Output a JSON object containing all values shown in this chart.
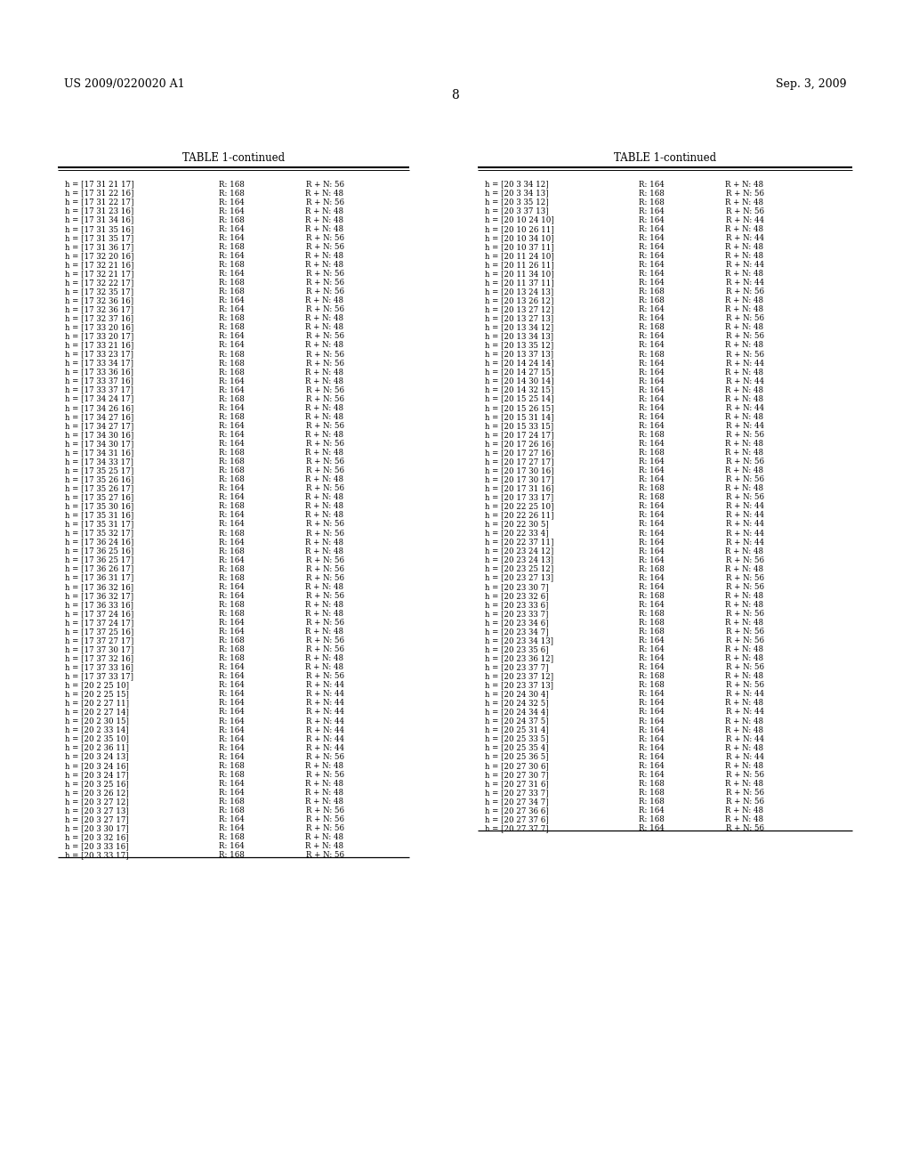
{
  "header_left": "US 2009/0220020 A1",
  "header_right": "Sep. 3, 2009",
  "page_number": "8",
  "table_title": "TABLE 1-continued",
  "bg_color": "#ffffff",
  "left_table_rows": [
    [
      "h = [17 31 21 17]",
      "R: 168",
      "R + N: 56"
    ],
    [
      "h = [17 31 22 16]",
      "R: 168",
      "R + N: 48"
    ],
    [
      "h = [17 31 22 17]",
      "R: 164",
      "R + N: 56"
    ],
    [
      "h = [17 31 23 16]",
      "R: 164",
      "R + N: 48"
    ],
    [
      "h = [17 31 34 16]",
      "R: 168",
      "R + N: 48"
    ],
    [
      "h = [17 31 35 16]",
      "R: 164",
      "R + N: 48"
    ],
    [
      "h = [17 31 35 17]",
      "R: 164",
      "R + N: 56"
    ],
    [
      "h = [17 31 36 17]",
      "R: 168",
      "R + N: 56"
    ],
    [
      "h = [17 32 20 16]",
      "R: 164",
      "R + N: 48"
    ],
    [
      "h = [17 32 21 16]",
      "R: 168",
      "R + N: 48"
    ],
    [
      "h = [17 32 21 17]",
      "R: 164",
      "R + N: 56"
    ],
    [
      "h = [17 32 22 17]",
      "R: 168",
      "R + N: 56"
    ],
    [
      "h = [17 32 35 17]",
      "R: 168",
      "R + N: 56"
    ],
    [
      "h = [17 32 36 16]",
      "R: 164",
      "R + N: 48"
    ],
    [
      "h = [17 32 36 17]",
      "R: 164",
      "R + N: 56"
    ],
    [
      "h = [17 32 37 16]",
      "R: 168",
      "R + N: 48"
    ],
    [
      "h = [17 33 20 16]",
      "R: 168",
      "R + N: 48"
    ],
    [
      "h = [17 33 20 17]",
      "R: 164",
      "R + N: 56"
    ],
    [
      "h = [17 33 21 16]",
      "R: 164",
      "R + N: 48"
    ],
    [
      "h = [17 33 23 17]",
      "R: 168",
      "R + N: 56"
    ],
    [
      "h = [17 33 34 17]",
      "R: 168",
      "R + N: 56"
    ],
    [
      "h = [17 33 36 16]",
      "R: 168",
      "R + N: 48"
    ],
    [
      "h = [17 33 37 16]",
      "R: 164",
      "R + N: 48"
    ],
    [
      "h = [17 33 37 17]",
      "R: 164",
      "R + N: 56"
    ],
    [
      "h = [17 34 24 17]",
      "R: 168",
      "R + N: 56"
    ],
    [
      "h = [17 34 26 16]",
      "R: 164",
      "R + N: 48"
    ],
    [
      "h = [17 34 27 16]",
      "R: 168",
      "R + N: 48"
    ],
    [
      "h = [17 34 27 17]",
      "R: 164",
      "R + N: 56"
    ],
    [
      "h = [17 34 30 16]",
      "R: 164",
      "R + N: 48"
    ],
    [
      "h = [17 34 30 17]",
      "R: 164",
      "R + N: 56"
    ],
    [
      "h = [17 34 31 16]",
      "R: 168",
      "R + N: 48"
    ],
    [
      "h = [17 34 33 17]",
      "R: 168",
      "R + N: 56"
    ],
    [
      "h = [17 35 25 17]",
      "R: 168",
      "R + N: 56"
    ],
    [
      "h = [17 35 26 16]",
      "R: 168",
      "R + N: 48"
    ],
    [
      "h = [17 35 26 17]",
      "R: 164",
      "R + N: 56"
    ],
    [
      "h = [17 35 27 16]",
      "R: 164",
      "R + N: 48"
    ],
    [
      "h = [17 35 30 16]",
      "R: 168",
      "R + N: 48"
    ],
    [
      "h = [17 35 31 16]",
      "R: 164",
      "R + N: 48"
    ],
    [
      "h = [17 35 31 17]",
      "R: 164",
      "R + N: 56"
    ],
    [
      "h = [17 35 32 17]",
      "R: 168",
      "R + N: 56"
    ],
    [
      "h = [17 36 24 16]",
      "R: 164",
      "R + N: 48"
    ],
    [
      "h = [17 36 25 16]",
      "R: 168",
      "R + N: 48"
    ],
    [
      "h = [17 36 25 17]",
      "R: 164",
      "R + N: 56"
    ],
    [
      "h = [17 36 26 17]",
      "R: 168",
      "R + N: 56"
    ],
    [
      "h = [17 36 31 17]",
      "R: 168",
      "R + N: 56"
    ],
    [
      "h = [17 36 32 16]",
      "R: 164",
      "R + N: 48"
    ],
    [
      "h = [17 36 32 17]",
      "R: 164",
      "R + N: 56"
    ],
    [
      "h = [17 36 33 16]",
      "R: 168",
      "R + N: 48"
    ],
    [
      "h = [17 37 24 16]",
      "R: 168",
      "R + N: 48"
    ],
    [
      "h = [17 37 24 17]",
      "R: 164",
      "R + N: 56"
    ],
    [
      "h = [17 37 25 16]",
      "R: 164",
      "R + N: 48"
    ],
    [
      "h = [17 37 27 17]",
      "R: 168",
      "R + N: 56"
    ],
    [
      "h = [17 37 30 17]",
      "R: 168",
      "R + N: 56"
    ],
    [
      "h = [17 37 32 16]",
      "R: 168",
      "R + N: 48"
    ],
    [
      "h = [17 37 33 16]",
      "R: 164",
      "R + N: 48"
    ],
    [
      "h = [17 37 33 17]",
      "R: 164",
      "R + N: 56"
    ],
    [
      "h = [20 2 25 10]",
      "R: 164",
      "R + N: 44"
    ],
    [
      "h = [20 2 25 15]",
      "R: 164",
      "R + N: 44"
    ],
    [
      "h = [20 2 27 11]",
      "R: 164",
      "R + N: 44"
    ],
    [
      "h = [20 2 27 14]",
      "R: 164",
      "R + N: 44"
    ],
    [
      "h = [20 2 30 15]",
      "R: 164",
      "R + N: 44"
    ],
    [
      "h = [20 2 33 14]",
      "R: 164",
      "R + N: 44"
    ],
    [
      "h = [20 2 35 10]",
      "R: 164",
      "R + N: 44"
    ],
    [
      "h = [20 2 36 11]",
      "R: 164",
      "R + N: 44"
    ],
    [
      "h = [20 3 24 13]",
      "R: 164",
      "R + N: 56"
    ],
    [
      "h = [20 3 24 16]",
      "R: 168",
      "R + N: 48"
    ],
    [
      "h = [20 3 24 17]",
      "R: 168",
      "R + N: 56"
    ],
    [
      "h = [20 3 25 16]",
      "R: 164",
      "R + N: 48"
    ],
    [
      "h = [20 3 26 12]",
      "R: 164",
      "R + N: 48"
    ],
    [
      "h = [20 3 27 12]",
      "R: 168",
      "R + N: 48"
    ],
    [
      "h = [20 3 27 13]",
      "R: 168",
      "R + N: 56"
    ],
    [
      "h = [20 3 27 17]",
      "R: 164",
      "R + N: 56"
    ],
    [
      "h = [20 3 30 17]",
      "R: 164",
      "R + N: 56"
    ],
    [
      "h = [20 3 32 16]",
      "R: 168",
      "R + N: 48"
    ],
    [
      "h = [20 3 33 16]",
      "R: 164",
      "R + N: 48"
    ],
    [
      "h = [20 3 33 17]",
      "R: 168",
      "R + N: 56"
    ]
  ],
  "right_table_rows": [
    [
      "h = [20 3 34 12]",
      "R: 164",
      "R + N: 48"
    ],
    [
      "h = [20 3 34 13]",
      "R: 168",
      "R + N: 56"
    ],
    [
      "h = [20 3 35 12]",
      "R: 168",
      "R + N: 48"
    ],
    [
      "h = [20 3 37 13]",
      "R: 164",
      "R + N: 56"
    ],
    [
      "h = [20 10 24 10]",
      "R: 164",
      "R + N: 44"
    ],
    [
      "h = [20 10 26 11]",
      "R: 164",
      "R + N: 48"
    ],
    [
      "h = [20 10 34 10]",
      "R: 164",
      "R + N: 44"
    ],
    [
      "h = [20 10 37 11]",
      "R: 164",
      "R + N: 48"
    ],
    [
      "h = [20 11 24 10]",
      "R: 164",
      "R + N: 48"
    ],
    [
      "h = [20 11 26 11]",
      "R: 164",
      "R + N: 44"
    ],
    [
      "h = [20 11 34 10]",
      "R: 164",
      "R + N: 48"
    ],
    [
      "h = [20 11 37 11]",
      "R: 164",
      "R + N: 44"
    ],
    [
      "h = [20 13 24 13]",
      "R: 168",
      "R + N: 56"
    ],
    [
      "h = [20 13 26 12]",
      "R: 168",
      "R + N: 48"
    ],
    [
      "h = [20 13 27 12]",
      "R: 164",
      "R + N: 48"
    ],
    [
      "h = [20 13 27 13]",
      "R: 164",
      "R + N: 56"
    ],
    [
      "h = [20 13 34 12]",
      "R: 168",
      "R + N: 48"
    ],
    [
      "h = [20 13 34 13]",
      "R: 164",
      "R + N: 56"
    ],
    [
      "h = [20 13 35 12]",
      "R: 164",
      "R + N: 48"
    ],
    [
      "h = [20 13 37 13]",
      "R: 168",
      "R + N: 56"
    ],
    [
      "h = [20 14 24 14]",
      "R: 164",
      "R + N: 44"
    ],
    [
      "h = [20 14 27 15]",
      "R: 164",
      "R + N: 48"
    ],
    [
      "h = [20 14 30 14]",
      "R: 164",
      "R + N: 44"
    ],
    [
      "h = [20 14 32 15]",
      "R: 164",
      "R + N: 48"
    ],
    [
      "h = [20 15 25 14]",
      "R: 164",
      "R + N: 48"
    ],
    [
      "h = [20 15 26 15]",
      "R: 164",
      "R + N: 44"
    ],
    [
      "h = [20 15 31 14]",
      "R: 164",
      "R + N: 48"
    ],
    [
      "h = [20 15 33 15]",
      "R: 164",
      "R + N: 44"
    ],
    [
      "h = [20 17 24 17]",
      "R: 168",
      "R + N: 56"
    ],
    [
      "h = [20 17 26 16]",
      "R: 164",
      "R + N: 48"
    ],
    [
      "h = [20 17 27 16]",
      "R: 168",
      "R + N: 48"
    ],
    [
      "h = [20 17 27 17]",
      "R: 164",
      "R + N: 56"
    ],
    [
      "h = [20 17 30 16]",
      "R: 164",
      "R + N: 48"
    ],
    [
      "h = [20 17 30 17]",
      "R: 164",
      "R + N: 56"
    ],
    [
      "h = [20 17 31 16]",
      "R: 168",
      "R + N: 48"
    ],
    [
      "h = [20 17 33 17]",
      "R: 168",
      "R + N: 56"
    ],
    [
      "h = [20 22 25 10]",
      "R: 164",
      "R + N: 44"
    ],
    [
      "h = [20 22 26 11]",
      "R: 164",
      "R + N: 44"
    ],
    [
      "h = [20 22 30 5]",
      "R: 164",
      "R + N: 44"
    ],
    [
      "h = [20 22 33 4]",
      "R: 164",
      "R + N: 44"
    ],
    [
      "h = [20 22 37 11]",
      "R: 164",
      "R + N: 44"
    ],
    [
      "h = [20 23 24 12]",
      "R: 164",
      "R + N: 48"
    ],
    [
      "h = [20 23 24 13]",
      "R: 164",
      "R + N: 56"
    ],
    [
      "h = [20 23 25 12]",
      "R: 168",
      "R + N: 48"
    ],
    [
      "h = [20 23 27 13]",
      "R: 164",
      "R + N: 56"
    ],
    [
      "h = [20 23 30 7]",
      "R: 164",
      "R + N: 56"
    ],
    [
      "h = [20 23 32 6]",
      "R: 168",
      "R + N: 48"
    ],
    [
      "h = [20 23 33 6]",
      "R: 164",
      "R + N: 48"
    ],
    [
      "h = [20 23 33 7]",
      "R: 168",
      "R + N: 56"
    ],
    [
      "h = [20 23 34 6]",
      "R: 168",
      "R + N: 48"
    ],
    [
      "h = [20 23 34 7]",
      "R: 168",
      "R + N: 56"
    ],
    [
      "h = [20 23 34 13]",
      "R: 164",
      "R + N: 56"
    ],
    [
      "h = [20 23 35 6]",
      "R: 164",
      "R + N: 48"
    ],
    [
      "h = [20 23 36 12]",
      "R: 164",
      "R + N: 48"
    ],
    [
      "h = [20 23 37 7]",
      "R: 164",
      "R + N: 56"
    ],
    [
      "h = [20 23 37 12]",
      "R: 168",
      "R + N: 48"
    ],
    [
      "h = [20 23 37 13]",
      "R: 168",
      "R + N: 56"
    ],
    [
      "h = [20 24 30 4]",
      "R: 164",
      "R + N: 44"
    ],
    [
      "h = [20 24 32 5]",
      "R: 164",
      "R + N: 48"
    ],
    [
      "h = [20 24 34 4]",
      "R: 164",
      "R + N: 44"
    ],
    [
      "h = [20 24 37 5]",
      "R: 164",
      "R + N: 48"
    ],
    [
      "h = [20 25 31 4]",
      "R: 164",
      "R + N: 48"
    ],
    [
      "h = [20 25 33 5]",
      "R: 164",
      "R + N: 44"
    ],
    [
      "h = [20 25 35 4]",
      "R: 164",
      "R + N: 48"
    ],
    [
      "h = [20 25 36 5]",
      "R: 164",
      "R + N: 44"
    ],
    [
      "h = [20 27 30 6]",
      "R: 164",
      "R + N: 48"
    ],
    [
      "h = [20 27 30 7]",
      "R: 164",
      "R + N: 56"
    ],
    [
      "h = [20 27 31 6]",
      "R: 168",
      "R + N: 48"
    ],
    [
      "h = [20 27 33 7]",
      "R: 168",
      "R + N: 56"
    ],
    [
      "h = [20 27 34 7]",
      "R: 168",
      "R + N: 56"
    ],
    [
      "h = [20 27 36 6]",
      "R: 164",
      "R + N: 48"
    ],
    [
      "h = [20 27 37 6]",
      "R: 168",
      "R + N: 48"
    ],
    [
      "h = [20 27 37 7]",
      "R: 164",
      "R + N: 56"
    ]
  ]
}
